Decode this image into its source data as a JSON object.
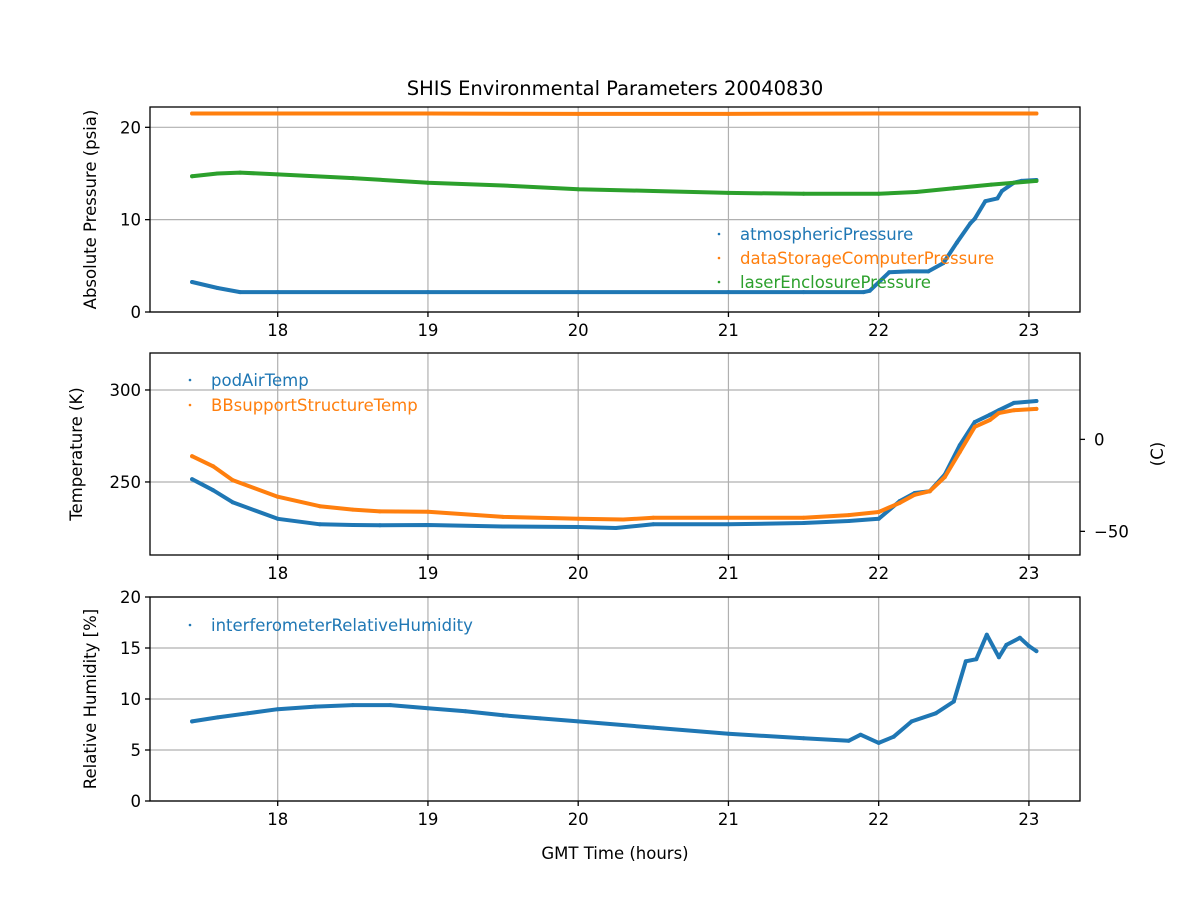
{
  "chart_data": {
    "title": "SHIS Environmental Parameters 20040830",
    "xlabel": "GMT Time (hours)",
    "xlim": [
      17.15,
      23.34
    ],
    "xticks": [
      18,
      19,
      20,
      21,
      22,
      23
    ],
    "grid": true,
    "panels": [
      {
        "type": "scatter",
        "ylabel": "Absolute Pressure (psia)",
        "ylim": [
          0,
          22.2
        ],
        "yticks": [
          0,
          10,
          20
        ],
        "legend_position": "lower-right",
        "series": [
          {
            "name": "atmosphericPressure",
            "color": "#1f77b4",
            "x": [
              17.43,
              17.6,
              17.75,
              18.0,
              19.0,
              20.0,
              21.0,
              21.5,
              21.9,
              21.94,
              22.07,
              22.2,
              22.33,
              22.43,
              22.52,
              22.61,
              22.64,
              22.71,
              22.79,
              22.82,
              22.9,
              22.95,
              23.05
            ],
            "y": [
              3.25,
              2.6,
              2.15,
              2.15,
              2.15,
              2.15,
              2.15,
              2.15,
              2.15,
              2.3,
              4.3,
              4.4,
              4.4,
              5.3,
              7.5,
              9.6,
              10.1,
              12.0,
              12.3,
              13.1,
              14.0,
              14.2,
              14.3
            ]
          },
          {
            "name": "dataStorageComputerPressure",
            "color": "#ff7f0e",
            "x": [
              17.43,
              18.0,
              19.0,
              20.0,
              21.0,
              22.0,
              23.05
            ],
            "y": [
              21.5,
              21.5,
              21.5,
              21.45,
              21.45,
              21.5,
              21.5
            ]
          },
          {
            "name": "laserEnclosurePressure",
            "color": "#2ca02c",
            "x": [
              17.43,
              17.6,
              17.75,
              18.0,
              18.5,
              19.0,
              19.5,
              20.0,
              20.5,
              21.0,
              21.5,
              22.0,
              22.25,
              22.5,
              22.75,
              23.05
            ],
            "y": [
              14.7,
              15.0,
              15.1,
              14.9,
              14.5,
              14.0,
              13.7,
              13.3,
              13.1,
              12.9,
              12.8,
              12.8,
              13.0,
              13.4,
              13.8,
              14.2
            ]
          }
        ]
      },
      {
        "type": "scatter",
        "ylabel": "Temperature (K)",
        "ylabel_right": "(C)",
        "ylim": [
          210.3,
          320.1
        ],
        "yticks": [
          250,
          300
        ],
        "yticks_right_celsius": [
          0,
          -50
        ],
        "kelvin_offset": 273.15,
        "legend_position": "upper-left",
        "series": [
          {
            "name": "podAirTemp",
            "color": "#1f77b4",
            "x": [
              17.43,
              17.57,
              17.7,
              18.0,
              18.28,
              18.5,
              18.68,
              19.0,
              19.5,
              20.0,
              20.25,
              20.5,
              21.0,
              21.5,
              21.8,
              22.0,
              22.14,
              22.24,
              22.34,
              22.44,
              22.54,
              22.64,
              22.74,
              22.8,
              22.9,
              23.05
            ],
            "y": [
              251.5,
              245.5,
              239.0,
              230.0,
              227.0,
              226.6,
              226.5,
              226.6,
              225.8,
              225.5,
              225.0,
              227.0,
              227.0,
              227.7,
              228.8,
              230.0,
              239.6,
              244.0,
              245.0,
              254.0,
              270.0,
              282.6,
              286.5,
              289.0,
              293.0,
              294.0
            ]
          },
          {
            "name": "BBsupportStructureTemp",
            "color": "#ff7f0e",
            "x": [
              17.43,
              17.57,
              17.7,
              18.0,
              18.28,
              18.5,
              18.68,
              19.0,
              19.5,
              20.0,
              20.3,
              20.5,
              21.0,
              21.5,
              21.8,
              22.0,
              22.14,
              22.24,
              22.34,
              22.44,
              22.54,
              22.64,
              22.74,
              22.8,
              22.9,
              23.05
            ],
            "y": [
              264.0,
              258.5,
              251.0,
              242.0,
              236.8,
              235.0,
              234.0,
              233.8,
              231.0,
              230.0,
              229.6,
              230.5,
              230.5,
              230.5,
              232.0,
              233.7,
              238.6,
              243.0,
              245.0,
              252.7,
              266.3,
              280.0,
              283.7,
              287.5,
              289.0,
              289.7
            ]
          }
        ]
      },
      {
        "type": "scatter",
        "ylabel": "Relative Humidity [%]",
        "ylim": [
          0,
          20
        ],
        "yticks": [
          0,
          5,
          10,
          15,
          20
        ],
        "legend_position": "upper-left",
        "series": [
          {
            "name": "interferometerRelativeHumidity",
            "color": "#1f77b4",
            "x": [
              17.43,
              17.6,
              17.8,
              18.0,
              18.25,
              18.5,
              18.75,
              19.0,
              19.25,
              19.5,
              19.75,
              20.0,
              20.5,
              21.0,
              21.5,
              21.8,
              21.88,
              22.0,
              22.1,
              22.22,
              22.38,
              22.5,
              22.58,
              22.65,
              22.72,
              22.8,
              22.85,
              22.94,
              23.0,
              23.05
            ],
            "y": [
              7.8,
              8.2,
              8.6,
              9.0,
              9.25,
              9.4,
              9.4,
              9.1,
              8.8,
              8.4,
              8.1,
              7.8,
              7.2,
              6.6,
              6.15,
              5.9,
              6.5,
              5.7,
              6.3,
              7.8,
              8.6,
              9.75,
              13.7,
              13.9,
              16.3,
              14.1,
              15.3,
              16.0,
              15.2,
              14.7
            ]
          }
        ]
      }
    ]
  }
}
